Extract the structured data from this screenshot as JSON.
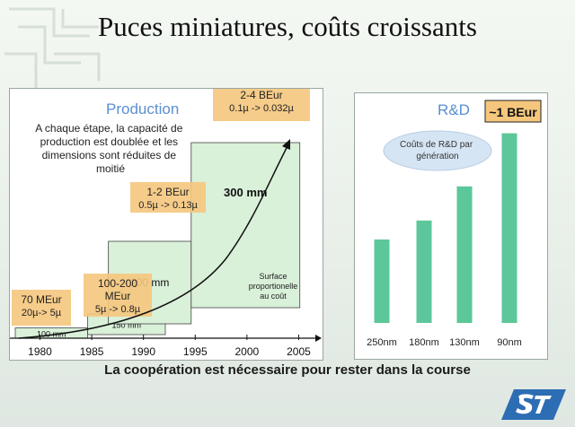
{
  "title": "Puces miniatures, coûts croissants",
  "subtitle": "La coopération est nécessaire pour rester dans la course",
  "colors": {
    "box_orange": "#f5c77d",
    "box_green": "#d9f0d9",
    "bar_green": "#5cc79a",
    "production_blue": "#5b8fd1"
  },
  "chart_data": [
    {
      "type": "area",
      "title": "Production",
      "annotation": "A chaque étape, la capacité de production est doublée et les dimensions sont réduites de moitié",
      "x_ticks": [
        "1980",
        "1985",
        "1990",
        "1995",
        "2000",
        "2005"
      ],
      "xlim": [
        1979,
        2008
      ],
      "generations": [
        {
          "wafer": "100 mm",
          "cost": "70 MEur",
          "node": "20µ-> 5µ",
          "x_start": 1979,
          "x_end": 1986,
          "height": 1
        },
        {
          "wafer": "150 mm",
          "cost": "100-200 MEur",
          "node": "5µ -> 0.8µ",
          "x_start": 1986,
          "x_end": 1993.5,
          "height": 2
        },
        {
          "wafer": "200 mm",
          "cost": "1-2 BEur",
          "node": "0.5µ -> 0.13µ",
          "x_start": 1988,
          "x_end": 1996,
          "height": 8
        },
        {
          "wafer": "300 mm",
          "cost": "2-4 BEur",
          "node": "0.1µ -> 0.032µ",
          "x_start": 1996,
          "x_end": 2006.5,
          "height": 16
        }
      ],
      "area_note": "Surface proportionelle au coût"
    },
    {
      "type": "bar",
      "title": "R&D",
      "annotation": "Coûts de R&D par génération",
      "peak_label": "~1 BEur",
      "categories": [
        "250nm",
        "180nm",
        "130nm",
        "90nm"
      ],
      "values": [
        0.44,
        0.54,
        0.72,
        1.0
      ],
      "ylim": [
        0,
        1.05
      ]
    }
  ]
}
